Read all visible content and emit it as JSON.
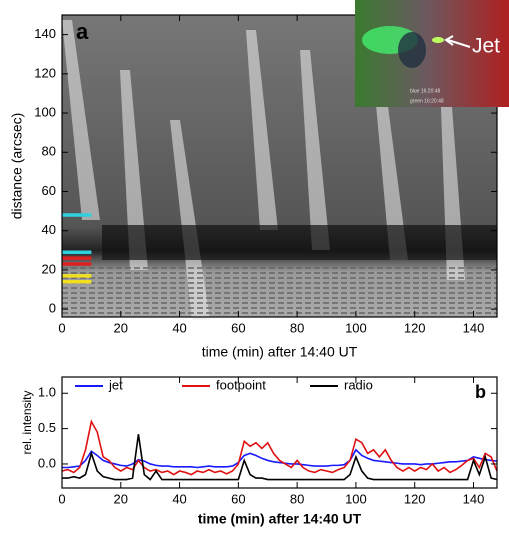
{
  "chart_data": [
    {
      "type": "image",
      "panel_label": "a",
      "x_label": "time (min) after 14:40 UT",
      "y_label": "distance (arcsec)",
      "xlim": [
        0,
        148
      ],
      "ylim": [
        -4,
        150
      ],
      "xticks": [
        0,
        20,
        40,
        60,
        80,
        100,
        120,
        140
      ],
      "yticks": [
        0,
        20,
        40,
        60,
        80,
        100,
        120,
        140
      ],
      "markers": {
        "values": [
          48,
          29,
          26,
          23,
          17,
          14
        ],
        "colors": [
          "#2fd0e0",
          "#2fd0e0",
          "#e02020",
          "#e02020",
          "#f0e020",
          "#f0e020"
        ],
        "x_end": 10
      },
      "inset": {
        "annotation": "Jet",
        "captions": [
          "blue 16:20:48",
          "green 16:20:48"
        ]
      }
    },
    {
      "type": "line",
      "panel_label": "b",
      "x_label": "time (min) after 14:40 UT",
      "y_label": "rel. intensity",
      "xlim": [
        0,
        148
      ],
      "ylim": [
        -0.34,
        1.23
      ],
      "xticks": [
        0,
        20,
        40,
        60,
        80,
        100,
        120,
        140
      ],
      "yticks": [
        {
          "value": 0,
          "label": "0.0"
        },
        0.5,
        {
          "value": 1,
          "label": "1.0"
        }
      ],
      "x": [
        0,
        2,
        4,
        6,
        8,
        10,
        12,
        14,
        16,
        18,
        20,
        22,
        24,
        26,
        28,
        30,
        32,
        34,
        36,
        38,
        40,
        42,
        44,
        46,
        48,
        50,
        52,
        54,
        56,
        58,
        60,
        62,
        64,
        66,
        68,
        70,
        72,
        74,
        76,
        78,
        80,
        82,
        84,
        86,
        88,
        90,
        92,
        94,
        96,
        98,
        100,
        102,
        104,
        106,
        108,
        110,
        112,
        114,
        116,
        118,
        120,
        122,
        124,
        126,
        128,
        130,
        132,
        134,
        136,
        138,
        140,
        142,
        144,
        146,
        148
      ],
      "series": [
        {
          "name": "jet",
          "color": "#1a1aff",
          "values": [
            -0.05,
            -0.05,
            -0.04,
            -0.03,
            0.05,
            0.18,
            0.12,
            0.05,
            0.02,
            0.0,
            -0.02,
            -0.03,
            0.0,
            0.06,
            0.04,
            0.0,
            -0.02,
            -0.03,
            -0.03,
            -0.04,
            -0.04,
            -0.04,
            -0.04,
            -0.05,
            -0.04,
            -0.03,
            -0.04,
            -0.04,
            -0.04,
            -0.03,
            0.02,
            0.12,
            0.15,
            0.12,
            0.08,
            0.05,
            0.03,
            0.02,
            0.01,
            0.0,
            0.0,
            -0.01,
            -0.02,
            -0.03,
            -0.03,
            -0.03,
            -0.02,
            -0.02,
            -0.01,
            0.05,
            0.2,
            0.12,
            0.08,
            0.05,
            0.04,
            0.03,
            0.02,
            0.01,
            0.0,
            0.0,
            0.0,
            -0.01,
            0.0,
            0.0,
            0.01,
            0.02,
            0.03,
            0.03,
            0.04,
            0.05,
            0.1,
            0.08,
            0.06,
            0.05,
            0.04
          ]
        },
        {
          "name": "footpoint",
          "color": "#e01010",
          "values": [
            -0.1,
            -0.08,
            -0.12,
            -0.05,
            0.2,
            0.6,
            0.45,
            0.1,
            0.05,
            -0.05,
            -0.1,
            -0.05,
            -0.08,
            0.05,
            -0.05,
            -0.1,
            -0.08,
            -0.12,
            -0.1,
            -0.15,
            -0.1,
            -0.12,
            -0.15,
            -0.1,
            -0.12,
            -0.08,
            -0.12,
            -0.1,
            -0.14,
            -0.1,
            0.0,
            0.32,
            0.25,
            0.3,
            0.22,
            0.3,
            0.15,
            0.05,
            0.0,
            -0.05,
            0.05,
            -0.05,
            -0.1,
            -0.12,
            -0.08,
            -0.1,
            -0.12,
            -0.08,
            -0.05,
            0.05,
            0.35,
            0.3,
            0.15,
            0.2,
            0.1,
            0.2,
            0.05,
            -0.05,
            -0.1,
            -0.05,
            -0.1,
            -0.05,
            -0.08,
            0.0,
            -0.1,
            -0.05,
            -0.12,
            -0.08,
            -0.02,
            0.05,
            0.08,
            -0.05,
            0.15,
            0.1,
            -0.1
          ]
        },
        {
          "name": "radio",
          "color": "#000000",
          "values": [
            -0.2,
            -0.2,
            -0.18,
            -0.2,
            -0.15,
            0.15,
            -0.1,
            -0.18,
            -0.2,
            -0.22,
            -0.22,
            -0.22,
            -0.2,
            0.42,
            -0.15,
            -0.22,
            -0.1,
            -0.22,
            -0.22,
            -0.22,
            -0.22,
            -0.22,
            -0.22,
            -0.22,
            -0.22,
            -0.22,
            -0.22,
            -0.22,
            -0.22,
            -0.22,
            -0.22,
            0.05,
            -0.15,
            -0.2,
            -0.2,
            -0.22,
            -0.22,
            -0.22,
            -0.22,
            -0.22,
            -0.22,
            -0.22,
            -0.22,
            -0.22,
            -0.22,
            -0.22,
            -0.22,
            -0.22,
            -0.22,
            -0.15,
            0.1,
            -0.1,
            -0.2,
            -0.22,
            -0.22,
            -0.22,
            -0.22,
            -0.22,
            -0.22,
            -0.22,
            -0.22,
            -0.22,
            -0.22,
            -0.22,
            -0.22,
            -0.22,
            -0.22,
            -0.22,
            -0.22,
            -0.22,
            0.05,
            -0.15,
            0.1,
            -0.2,
            -0.22
          ]
        }
      ]
    }
  ]
}
